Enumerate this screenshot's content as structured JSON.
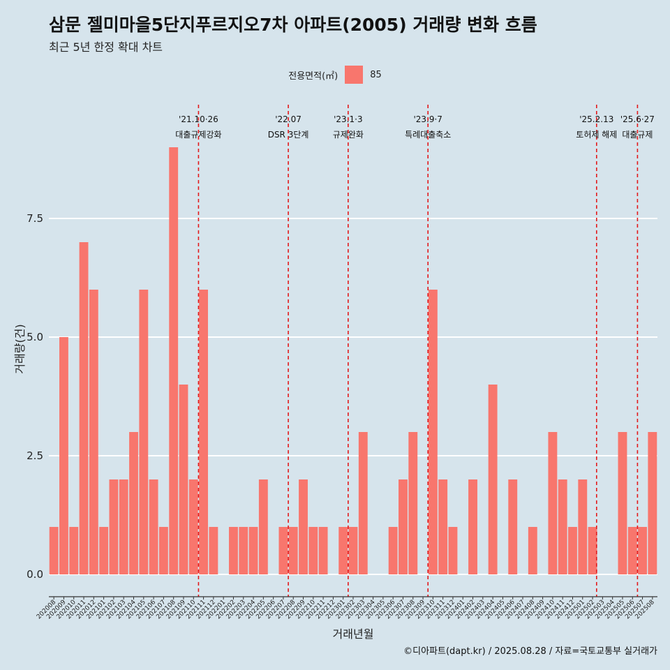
{
  "header": {
    "title": "삼문 젤미마을5단지푸르지오7차 아파트(2005) 거래량 변화 흐름",
    "subtitle": "최근 5년 한정 확대 차트"
  },
  "legend": {
    "title": "전용면적(㎡)",
    "label": "85",
    "color": "#f8766d"
  },
  "footer": "©디아파트(dapt.kr) / 2025.08.28 / 자료=국토교통부 실거래가",
  "chart_data": {
    "type": "bar",
    "xlabel": "거래년월",
    "ylabel": "거래량(건)",
    "ylim": [
      -0.3,
      9.5
    ],
    "yticks": [
      0.0,
      2.5,
      5.0,
      7.5
    ],
    "yticklabels": [
      "0.0",
      "2.5",
      "5.0",
      "7.5"
    ],
    "bar_color": "#f8766d",
    "categories": [
      "202008",
      "202009",
      "202010",
      "202011",
      "202012",
      "202101",
      "202102",
      "202103",
      "202104",
      "202105",
      "202106",
      "202107",
      "202108",
      "202109",
      "202110",
      "202111",
      "202112",
      "202201",
      "202202",
      "202203",
      "202204",
      "202205",
      "202206",
      "202207",
      "202208",
      "202209",
      "202210",
      "202211",
      "202212",
      "202301",
      "202302",
      "202303",
      "202304",
      "202305",
      "202306",
      "202307",
      "202308",
      "202309",
      "202310",
      "202311",
      "202312",
      "202401",
      "202402",
      "202403",
      "202404",
      "202405",
      "202406",
      "202407",
      "202408",
      "202409",
      "202410",
      "202411",
      "202412",
      "202501",
      "202502",
      "202503",
      "202504",
      "202505",
      "202506",
      "202507",
      "202508"
    ],
    "series": [
      {
        "name": "85",
        "values": [
          1,
          5,
          1,
          7,
          6,
          1,
          2,
          2,
          3,
          6,
          2,
          1,
          9,
          4,
          2,
          6,
          1,
          0,
          1,
          1,
          1,
          2,
          0,
          1,
          1,
          2,
          1,
          1,
          0,
          1,
          1,
          3,
          0,
          0,
          1,
          2,
          3,
          0,
          6,
          2,
          1,
          0,
          2,
          0,
          4,
          0,
          2,
          0,
          1,
          0,
          3,
          2,
          1,
          2,
          1,
          0,
          0,
          3,
          1,
          1,
          3
        ]
      }
    ],
    "annotations": [
      {
        "index": 14.5,
        "date": "'21.10·26",
        "text": "대출규제강화"
      },
      {
        "index": 23.5,
        "date": "'22.07",
        "text": "DSR 3단계"
      },
      {
        "index": 29.5,
        "date": "'23.1·3",
        "text": "규제완화"
      },
      {
        "index": 37.5,
        "date": "'23.9·7",
        "text": "특례대출축소"
      },
      {
        "index": 54.4,
        "date": "'25.2.13",
        "text": "토허제 해제"
      },
      {
        "index": 58.5,
        "date": "'25.6·27",
        "text": "대출규제"
      }
    ]
  }
}
